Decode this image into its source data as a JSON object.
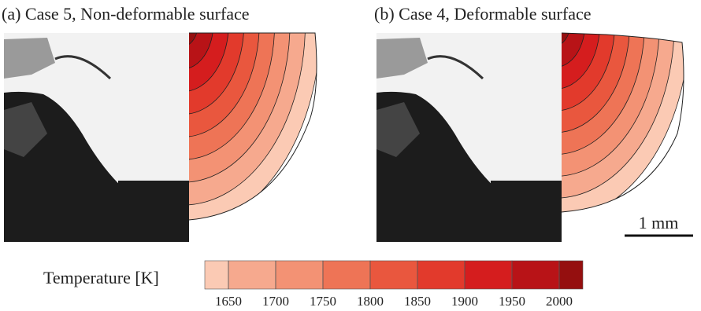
{
  "panels": [
    {
      "title": "(a) Case 5, Non-deformable surface"
    },
    {
      "title": "(b) Case 4, Deformable surface"
    }
  ],
  "scale_bar": "1 mm",
  "colorbar": {
    "title": "Temperature [K]",
    "ticks": [
      1650,
      1700,
      1750,
      1800,
      1850,
      1900,
      1950,
      2000
    ],
    "colors": [
      "#fbcab4",
      "#f6a98e",
      "#f39274",
      "#ee7456",
      "#e9573e",
      "#e23a2c",
      "#d51d1e",
      "#b81317",
      "#950f0f"
    ]
  }
}
